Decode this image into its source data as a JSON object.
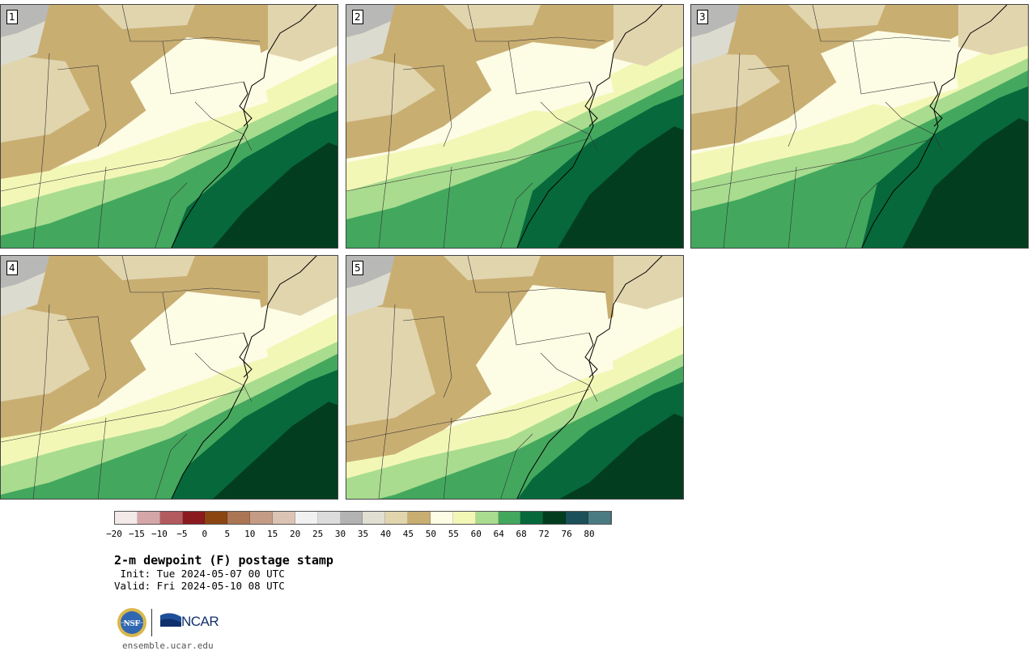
{
  "panels": [
    {
      "label": "1"
    },
    {
      "label": "2"
    },
    {
      "label": "3"
    },
    {
      "label": "4"
    },
    {
      "label": "5"
    }
  ],
  "colorbar": {
    "colors": [
      "#f4e9e9",
      "#d5a6a8",
      "#b35a5e",
      "#8b1a1f",
      "#8a4512",
      "#ab7553",
      "#c49c86",
      "#dcc4b4",
      "#f1f1f1",
      "#dcdcdc",
      "#b3b3b3",
      "#e0dfd2",
      "#e1d5ae",
      "#c9ae72",
      "#fdfce5",
      "#f3f7b6",
      "#a9dc8f",
      "#43a85e",
      "#07693b",
      "#033d20",
      "#1b4f5a",
      "#4b7b82"
    ],
    "tick_labels": [
      "−20",
      "−15",
      "−10",
      "−5",
      "0",
      "5",
      "10",
      "15",
      "20",
      "25",
      "30",
      "35",
      "40",
      "45",
      "50",
      "55",
      "60",
      "64",
      "68",
      "72",
      "76",
      "80"
    ]
  },
  "title": "2-m dewpoint (F) postage stamp",
  "init_line": " Init: Tue 2024-05-07 00 UTC",
  "valid_line": "Valid: Fri 2024-05-10 08 UTC",
  "logos": {
    "nsf": "NSF",
    "ncar": "NCAR"
  },
  "url": "ensemble.ucar.edu",
  "icons": {
    "nsf_logo": "nsf-seal-icon",
    "ncar_logo": "ncar-logo-icon"
  }
}
